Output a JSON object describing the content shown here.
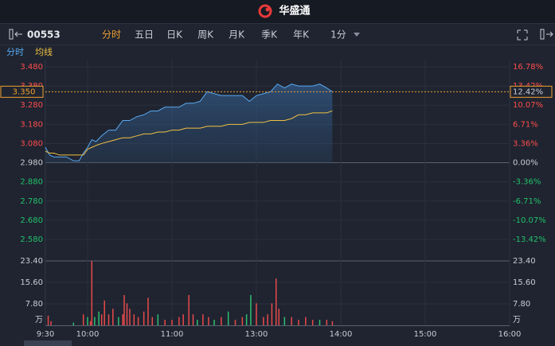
{
  "header": {
    "title": "华盛通"
  },
  "toolbar": {
    "symbol": "00553",
    "tabs": [
      "分时",
      "五日",
      "日K",
      "周K",
      "月K",
      "季K",
      "年K",
      "1分"
    ],
    "active_tab": 0
  },
  "chart_data": [
    {
      "type": "line",
      "x": [
        0,
        3,
        6,
        10,
        15,
        20,
        24,
        27,
        30,
        33,
        36,
        40,
        45,
        50,
        55,
        60,
        65,
        70,
        75,
        80,
        85,
        90,
        95,
        100,
        105,
        110,
        115,
        120,
        125,
        130,
        135,
        140,
        145,
        150,
        155,
        160,
        165,
        170,
        175,
        180,
        185,
        190,
        195,
        200,
        204
      ],
      "series": [
        {
          "name": "分时",
          "color": "#5aa9f0",
          "values": [
            3.06,
            3.02,
            3.01,
            3.01,
            3.01,
            2.99,
            2.99,
            3.03,
            3.06,
            3.1,
            3.09,
            3.12,
            3.15,
            3.15,
            3.2,
            3.2,
            3.22,
            3.23,
            3.25,
            3.25,
            3.27,
            3.27,
            3.27,
            3.29,
            3.29,
            3.3,
            3.35,
            3.34,
            3.33,
            3.33,
            3.33,
            3.33,
            3.3,
            3.33,
            3.34,
            3.35,
            3.39,
            3.37,
            3.39,
            3.38,
            3.38,
            3.38,
            3.39,
            3.37,
            3.35
          ]
        },
        {
          "name": "均线",
          "color": "#f0c040",
          "values": [
            3.04,
            3.03,
            3.03,
            3.02,
            3.02,
            3.02,
            3.02,
            3.02,
            3.05,
            3.06,
            3.07,
            3.08,
            3.09,
            3.1,
            3.11,
            3.11,
            3.12,
            3.13,
            3.13,
            3.14,
            3.14,
            3.15,
            3.15,
            3.16,
            3.16,
            3.16,
            3.17,
            3.17,
            3.17,
            3.18,
            3.18,
            3.18,
            3.19,
            3.19,
            3.19,
            3.2,
            3.2,
            3.2,
            3.21,
            3.23,
            3.23,
            3.24,
            3.24,
            3.24,
            3.25
          ]
        }
      ],
      "xlim": [
        0,
        330
      ],
      "ylim": [
        2.58,
        3.48
      ],
      "yticks": [
        {
          "value": 3.48,
          "label": "3.480"
        },
        {
          "value": 3.38,
          "label": "3.380"
        },
        {
          "value": 3.28,
          "label": "3.280"
        },
        {
          "value": 3.18,
          "label": "3.180"
        },
        {
          "value": 3.08,
          "label": "3.080"
        },
        {
          "value": 2.98,
          "label": "2.980"
        },
        {
          "value": 2.88,
          "label": "2.880"
        },
        {
          "value": 2.78,
          "label": "2.780"
        },
        {
          "value": 2.68,
          "label": "2.680"
        },
        {
          "value": 2.58,
          "label": "2.580"
        }
      ],
      "y2lim": [
        -13.42,
        16.78
      ],
      "y2ticks": [
        {
          "value": 16.78,
          "label": "16.78%"
        },
        {
          "value": 13.42,
          "label": "13.42%"
        },
        {
          "value": 10.07,
          "label": "10.07%"
        },
        {
          "value": 6.71,
          "label": "6.71%"
        },
        {
          "value": 3.36,
          "label": "3.36%"
        },
        {
          "value": 0,
          "label": "0.00%"
        },
        {
          "value": -3.36,
          "label": "-3.36%"
        },
        {
          "value": -6.71,
          "label": "-6.71%"
        },
        {
          "value": -10.07,
          "label": "-10.07%"
        },
        {
          "value": -13.42,
          "label": "-13.42%"
        }
      ],
      "last_price": {
        "value": 3.35,
        "label": "3.350"
      },
      "last_change": {
        "value": 12.42,
        "label": "12.42%"
      }
    },
    {
      "type": "bar",
      "x": [
        2,
        4,
        20,
        27,
        30,
        32,
        33,
        35,
        38,
        40,
        42,
        45,
        48,
        52,
        55,
        56,
        58,
        60,
        63,
        66,
        70,
        73,
        76,
        80,
        85,
        90,
        95,
        98,
        102,
        105,
        108,
        112,
        116,
        120,
        125,
        130,
        135,
        140,
        143,
        146,
        150,
        155,
        158,
        161,
        164,
        166,
        170,
        175,
        180,
        185,
        190,
        195,
        200,
        204
      ],
      "values": [
        3.5,
        1.5,
        1.0,
        4,
        3,
        1.5,
        23.4,
        3,
        5,
        4,
        9,
        4,
        6,
        3,
        4,
        11,
        8,
        6,
        4,
        3,
        5,
        10,
        3,
        4,
        2,
        2,
        3,
        4,
        11,
        4,
        2,
        4,
        3,
        2,
        3,
        5,
        2,
        3,
        4,
        11,
        8,
        3,
        4,
        8,
        17,
        6,
        3,
        3,
        2,
        3,
        2,
        2,
        2,
        1.5
      ],
      "colors": [
        "#e84a4a",
        "#e84a4a",
        "#2fbf71",
        "#e84a4a",
        "#2fbf71",
        "#e84a4a",
        "#e84a4a",
        "#2fbf71",
        "#2fbf71",
        "#e84a4a",
        "#e84a4a",
        "#e84a4a",
        "#e84a4a",
        "#2fbf71",
        "#e84a4a",
        "#e84a4a",
        "#e84a4a",
        "#e84a4a",
        "#e84a4a",
        "#e84a4a",
        "#e84a4a",
        "#e84a4a",
        "#e84a4a",
        "#2fbf71",
        "#e84a4a",
        "#e84a4a",
        "#e84a4a",
        "#e84a4a",
        "#e84a4a",
        "#e84a4a",
        "#2fbf71",
        "#e84a4a",
        "#e84a4a",
        "#2fbf71",
        "#e84a4a",
        "#2fbf71",
        "#e84a4a",
        "#e84a4a",
        "#2fbf71",
        "#2fbf71",
        "#e84a4a",
        "#e84a4a",
        "#e84a4a",
        "#e84a4a",
        "#e84a4a",
        "#e84a4a",
        "#2fbf71",
        "#e84a4a",
        "#e84a4a",
        "#e84a4a",
        "#e84a4a",
        "#2fbf71",
        "#e84a4a",
        "#e84a4a"
      ],
      "xlim": [
        0,
        330
      ],
      "xticks": [
        {
          "value": 0,
          "label": "9:30"
        },
        {
          "value": 30,
          "label": "10:00"
        },
        {
          "value": 90,
          "label": "11:00"
        },
        {
          "value": 150,
          "label": "13:00"
        },
        {
          "value": 210,
          "label": "14:00"
        },
        {
          "value": 270,
          "label": "15:00"
        },
        {
          "value": 330,
          "label": "16:00"
        }
      ],
      "ylim": [
        0,
        23.4
      ],
      "yticks": [
        {
          "value": 23.4,
          "label": "23.40"
        },
        {
          "value": 15.6,
          "label": "15.60"
        },
        {
          "value": 7.8,
          "label": "7.80"
        }
      ],
      "unit": "万"
    }
  ]
}
